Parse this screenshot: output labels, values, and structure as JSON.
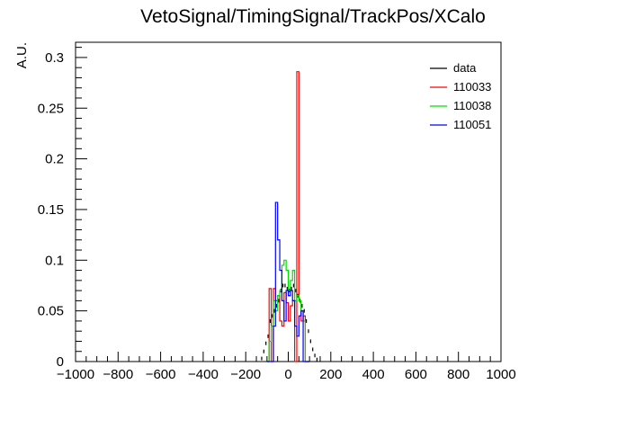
{
  "chart_data": {
    "type": "histogram",
    "title": "VetoSignal/TimingSignal/TrackPos/XCalo",
    "xlabel": "",
    "ylabel": "A.U.",
    "xlim": [
      -1000,
      1000
    ],
    "ylim": [
      0,
      0.315
    ],
    "bin_width": 10,
    "x_ticks": [
      -1000,
      -800,
      -600,
      -400,
      -200,
      0,
      200,
      400,
      600,
      800,
      1000
    ],
    "x_tick_labels": [
      "−1000",
      "−800",
      "−600",
      "−400",
      "−200",
      "0",
      "200",
      "400",
      "600",
      "800",
      "1000"
    ],
    "y_ticks": [
      0,
      0.05,
      0.1,
      0.15,
      0.2,
      0.25,
      0.3
    ],
    "y_tick_labels": [
      "0",
      "0.05",
      "0.1",
      "0.15",
      "0.2",
      "0.25",
      "0.3"
    ],
    "legend_position": "top-right",
    "grid": false,
    "series": [
      {
        "name": "data",
        "color": "#000000",
        "style": "points",
        "x": [
          -130,
          -120,
          -110,
          -100,
          -90,
          -80,
          -70,
          -60,
          -50,
          -40,
          -30,
          -20,
          -10,
          0,
          10,
          20,
          30,
          40,
          50,
          60,
          70,
          80,
          90,
          100,
          110,
          120,
          130
        ],
        "y": [
          0.003,
          0.01,
          0.018,
          0.025,
          0.04,
          0.045,
          0.05,
          0.055,
          0.06,
          0.07,
          0.075,
          0.075,
          0.072,
          0.07,
          0.072,
          0.075,
          0.07,
          0.065,
          0.06,
          0.055,
          0.05,
          0.04,
          0.03,
          0.02,
          0.012,
          0.006,
          0.002
        ]
      },
      {
        "name": "110033",
        "color": "#ff0000",
        "style": "step",
        "x": [
          -100,
          -90,
          -80,
          -70,
          -60,
          -50,
          -40,
          -30,
          -20,
          -10,
          0,
          10,
          20,
          30,
          40,
          50,
          60,
          70,
          80,
          90
        ],
        "y": [
          0.0,
          0.072,
          0.0,
          0.072,
          0.06,
          0.065,
          0.04,
          0.035,
          0.068,
          0.058,
          0.04,
          0.055,
          0.06,
          0.0,
          0.286,
          0.06,
          0.04,
          0.045,
          0.0,
          0.0
        ]
      },
      {
        "name": "110038",
        "color": "#00dd00",
        "style": "step",
        "x": [
          -100,
          -90,
          -80,
          -70,
          -60,
          -50,
          -40,
          -30,
          -20,
          -10,
          0,
          10,
          20,
          30,
          40,
          50,
          60,
          70,
          80,
          90
        ],
        "y": [
          0.0,
          0.02,
          0.035,
          0.06,
          0.05,
          0.065,
          0.07,
          0.095,
          0.1,
          0.09,
          0.07,
          0.08,
          0.09,
          0.06,
          0.065,
          0.06,
          0.05,
          0.04,
          0.0,
          0.0
        ]
      },
      {
        "name": "110051",
        "color": "#0000ff",
        "style": "step",
        "x": [
          -100,
          -90,
          -80,
          -70,
          -60,
          -50,
          -40,
          -30,
          -20,
          -10,
          0,
          10,
          20,
          30,
          40,
          50,
          60,
          70,
          80,
          90
        ],
        "y": [
          0.0,
          0.0,
          0.0,
          0.035,
          0.157,
          0.12,
          0.09,
          0.06,
          0.04,
          0.07,
          0.065,
          0.07,
          0.06,
          0.035,
          0.025,
          0.045,
          0.05,
          0.0,
          0.0,
          0.0
        ]
      }
    ]
  }
}
